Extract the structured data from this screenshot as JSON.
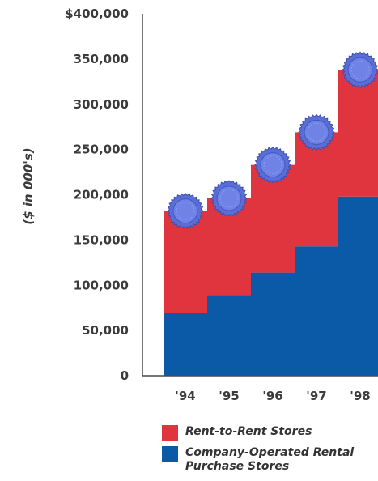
{
  "chart_data": {
    "type": "bar",
    "stacked": true,
    "categories": [
      "'94",
      "'95",
      "'96",
      "'97",
      "'98"
    ],
    "series": [
      {
        "name": "Company-Operated Rental Purchase Stores",
        "color": "#0b5aa8",
        "values": [
          69000,
          89000,
          114000,
          143000,
          198000
        ]
      },
      {
        "name": "Rent-to-Rent Stores",
        "color": "#e0343f",
        "values": [
          113000,
          107000,
          119000,
          126000,
          140000
        ]
      }
    ],
    "ylabel": "($ in 000's)",
    "ylim": [
      0,
      400000
    ],
    "yticks": [
      "0",
      "50,000",
      "100,000",
      "150,000",
      "200,000",
      "250,000",
      "300,000",
      "350,000",
      "$400,000"
    ],
    "grid": false,
    "legend_position": "bottom",
    "decoration": "blue seal badge on top of each bar",
    "decoration_color": "#5a6fd6"
  },
  "legend": {
    "items": [
      {
        "label": "Rent-to-Rent Stores",
        "color": "#e0343f"
      },
      {
        "label": "Company-Operated Rental Purchase Stores",
        "color": "#0b5aa8"
      }
    ]
  }
}
